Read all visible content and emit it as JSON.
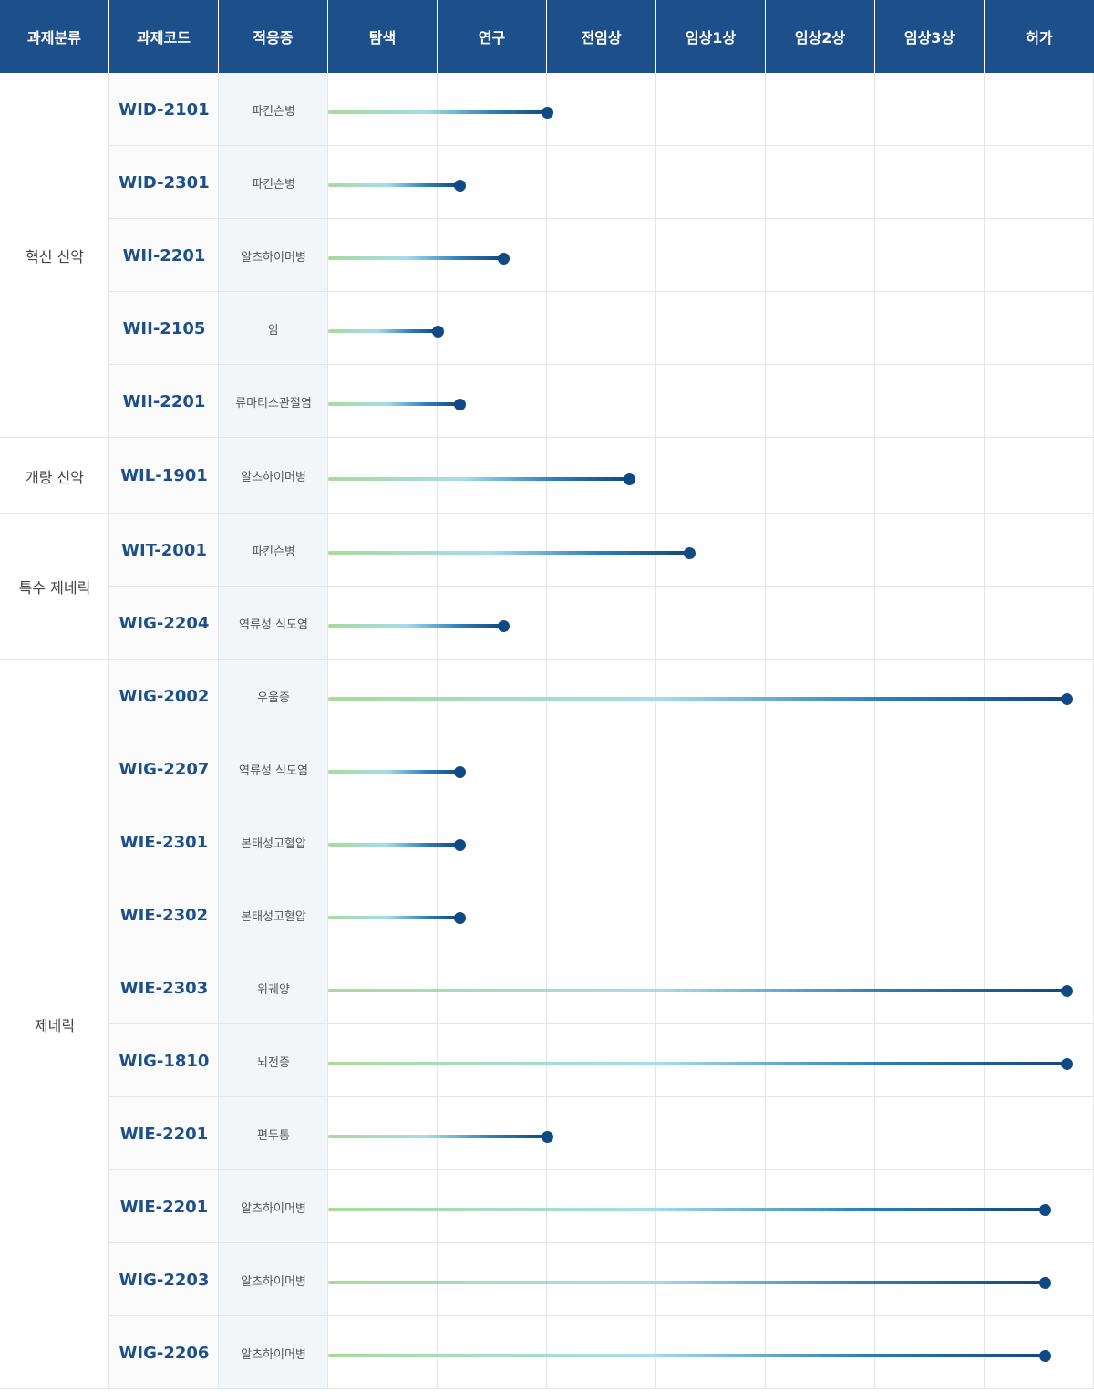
{
  "header": {
    "category": "과제분류",
    "code": "과제코드",
    "indication": "적응증",
    "stages": [
      "탐색",
      "연구",
      "전임상",
      "임상1상",
      "임상2상",
      "임상3상",
      "허가"
    ]
  },
  "groups": [
    {
      "category": "혁신 신약",
      "rows": [
        {
          "code": "WID-2101",
          "indication": "파킨슨병",
          "progress_stages": 2.0
        },
        {
          "code": "WID-2301",
          "indication": "파킨슨병",
          "progress_stages": 1.2
        },
        {
          "code": "WII-2201",
          "indication": "알츠하이머병",
          "progress_stages": 1.6
        },
        {
          "code": "WII-2105",
          "indication": "암",
          "progress_stages": 1.0
        },
        {
          "code": "WII-2201",
          "indication": "류마티스관절염",
          "progress_stages": 1.2
        }
      ]
    },
    {
      "category": "개량 신약",
      "rows": [
        {
          "code": "WIL-1901",
          "indication": "알츠하이머병",
          "progress_stages": 2.75
        }
      ]
    },
    {
      "category": "특수 제네릭",
      "rows": [
        {
          "code": "WIT-2001",
          "indication": "파킨슨병",
          "progress_stages": 3.3
        },
        {
          "code": "WIG-2204",
          "indication": "역류성 식도염",
          "progress_stages": 1.6
        }
      ]
    },
    {
      "category": "제네릭",
      "rows": [
        {
          "code": "WIG-2002",
          "indication": "우울증",
          "progress_stages": 6.75
        },
        {
          "code": "WIG-2207",
          "indication": "역류성 식도염",
          "progress_stages": 1.2
        },
        {
          "code": "WIE-2301",
          "indication": "본태성고혈압",
          "progress_stages": 1.2
        },
        {
          "code": "WIE-2302",
          "indication": "본태성고혈압",
          "progress_stages": 1.2
        },
        {
          "code": "WIE-2303",
          "indication": "위궤양",
          "progress_stages": 6.75
        },
        {
          "code": "WIG-1810",
          "indication": "뇌전증",
          "progress_stages": 6.75
        },
        {
          "code": "WIE-2201",
          "indication": "편두통",
          "progress_stages": 2.0
        },
        {
          "code": "WIE-2201",
          "indication": "알츠하이머병",
          "progress_stages": 6.55
        },
        {
          "code": "WIG-2203",
          "indication": "알츠하이머병",
          "progress_stages": 6.55
        },
        {
          "code": "WIG-2206",
          "indication": "알츠하이머병",
          "progress_stages": 6.55
        }
      ]
    }
  ],
  "colors": {
    "header_bg": "#1d4f8a",
    "code_text": "#1d4f8a",
    "bar_start": "#a8db9a",
    "bar_mid": "#a5dcea",
    "bar_end": "#13477f",
    "dot": "#0f4a86"
  }
}
